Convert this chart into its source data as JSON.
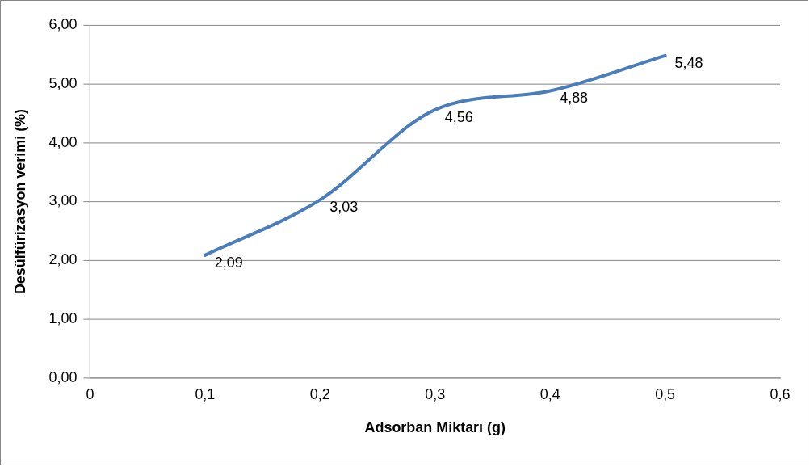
{
  "chart_data": {
    "type": "line",
    "xlabel": "Adsorban Miktarı (g)",
    "ylabel": "Desülfürizasyon verimi (%)",
    "x": [
      0.1,
      0.2,
      0.3,
      0.4,
      0.5
    ],
    "series": [
      {
        "color": "#4a7ebb",
        "values": [
          2.09,
          3.03,
          4.56,
          4.88,
          5.48
        ],
        "value_labels": [
          "2,09",
          "3,03",
          "4,56",
          "4,88",
          "5,48"
        ]
      }
    ],
    "xlim": [
      0,
      0.6
    ],
    "xticks": [
      0,
      {
        "value": 0.1,
        "label": "0,1"
      },
      {
        "value": 0.2,
        "label": "0,2"
      },
      {
        "value": 0.3,
        "label": "0,3"
      },
      {
        "value": 0.4,
        "label": "0,4"
      },
      {
        "value": 0.5,
        "label": "0,5"
      },
      {
        "value": 0.6,
        "label": "0,6"
      }
    ],
    "ylim": [
      0,
      6
    ],
    "yticks": [
      {
        "value": 0,
        "label": "0,00"
      },
      {
        "value": 1,
        "label": "1,00"
      },
      {
        "value": 2,
        "label": "2,00"
      },
      {
        "value": 3,
        "label": "3,00"
      },
      {
        "value": 4,
        "label": "4,00"
      },
      {
        "value": 5,
        "label": "5,00"
      },
      {
        "value": 6,
        "label": "6,00"
      }
    ],
    "grid": "y",
    "legend": false,
    "marker": "none",
    "line_style": "solid"
  }
}
